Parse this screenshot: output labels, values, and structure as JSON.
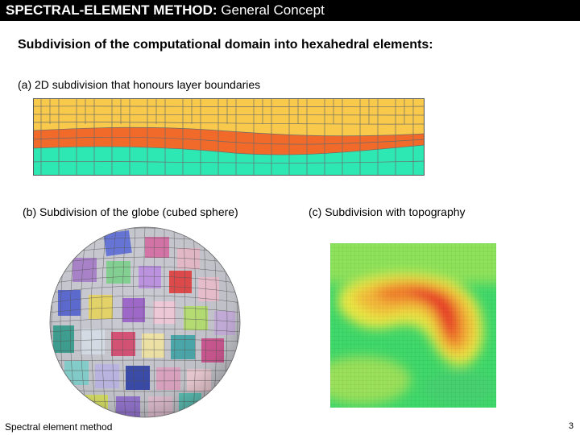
{
  "header": {
    "title_bold": "SPECTRAL-ELEMENT METHOD:",
    "title_rest": " General Concept"
  },
  "subtitle": "Subdivision of the computational domain into hexahedral elements:",
  "figures": {
    "a_caption": "(a) 2D subdivision that honours layer boundaries",
    "b_caption": "(b) Subdivision of the globe (cubed sphere)",
    "c_caption": "(c) Subdivision with topography"
  },
  "footer": {
    "left": "Spectral element method",
    "page": "3"
  },
  "colors": {
    "title_bg": "#000000",
    "layer_top": "#F8C94A",
    "layer_mid": "#F26A2A",
    "layer_bottom": "#2EE8B4",
    "grid": "#6b6b6b"
  }
}
